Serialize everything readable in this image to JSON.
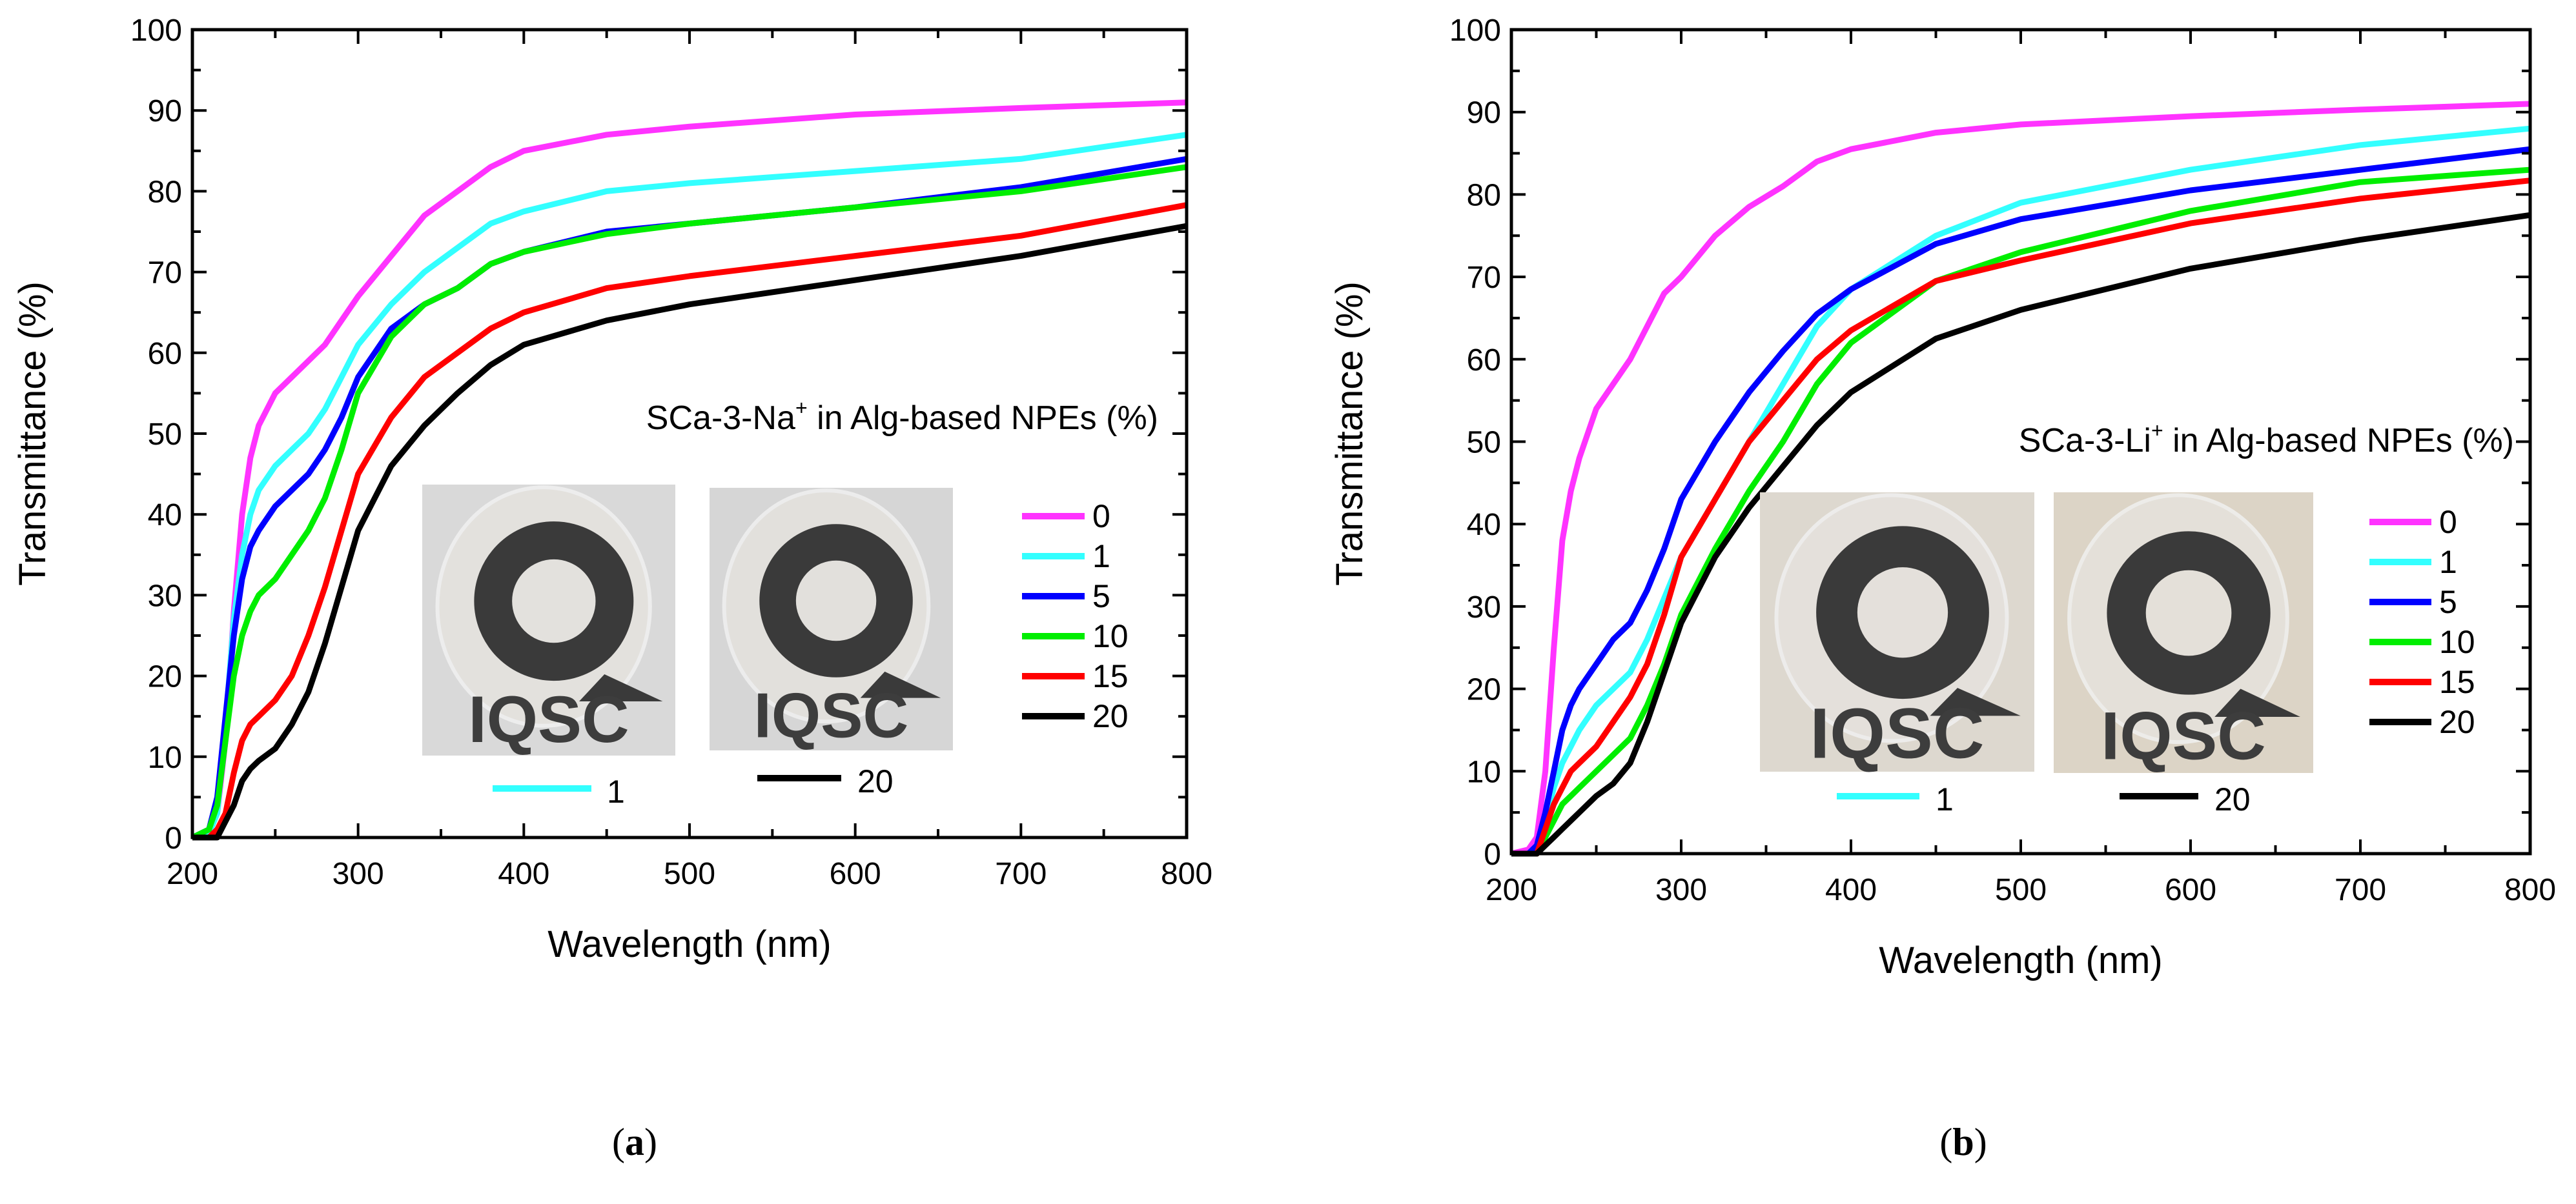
{
  "chart_data": [
    {
      "type": "line",
      "panel_label": "(a)",
      "panel_letter": "a",
      "title": "SCa-3-Na+ in Alg-based NPEs (%)",
      "title_main": "SCa-3-Na",
      "title_sup": "+",
      "title_rest": " in Alg-based NPEs (%)",
      "xlabel": "Wavelength (nm)",
      "ylabel": "Transmittance (%)",
      "xlim": [
        200,
        800
      ],
      "ylim": [
        0,
        100
      ],
      "xticks": [
        200,
        300,
        400,
        500,
        600,
        700,
        800
      ],
      "yticks": [
        0,
        10,
        20,
        30,
        40,
        50,
        60,
        70,
        80,
        90,
        100
      ],
      "grid": false,
      "legend_position": "right",
      "x": [
        200,
        210,
        215,
        220,
        225,
        230,
        235,
        240,
        250,
        260,
        270,
        280,
        290,
        300,
        320,
        340,
        360,
        380,
        400,
        450,
        500,
        600,
        700,
        800
      ],
      "series": [
        {
          "name": "0",
          "color": "#ff33ff",
          "values": [
            0,
            0.5,
            3,
            12,
            28,
            40,
            47,
            51,
            55,
            57,
            59,
            61,
            64,
            67,
            72,
            77,
            80,
            83,
            85,
            87,
            88,
            89.5,
            90.3,
            91
          ]
        },
        {
          "name": "1",
          "color": "#33ffff",
          "values": [
            0,
            0.5,
            3,
            14,
            27,
            35,
            40,
            43,
            46,
            48,
            50,
            53,
            57,
            61,
            66,
            70,
            73,
            76,
            77.5,
            80,
            81,
            82.5,
            84,
            87
          ]
        },
        {
          "name": "5",
          "color": "#0000ff",
          "values": [
            0,
            1,
            5,
            15,
            25,
            32,
            36,
            38,
            41,
            43,
            45,
            48,
            52,
            57,
            63,
            66,
            68,
            71,
            72.5,
            75,
            76,
            78,
            80.5,
            84
          ]
        },
        {
          "name": "10",
          "color": "#00ee00",
          "values": [
            0,
            1,
            4,
            12,
            20,
            25,
            28,
            30,
            32,
            35,
            38,
            42,
            48,
            55,
            62,
            66,
            68,
            71,
            72.5,
            74.7,
            76,
            78,
            80,
            83
          ]
        },
        {
          "name": "15",
          "color": "#ff0000",
          "values": [
            0,
            0,
            1,
            3,
            8,
            12,
            14,
            15,
            17,
            20,
            25,
            31,
            38,
            45,
            52,
            57,
            60,
            63,
            65,
            68,
            69.5,
            72,
            74.5,
            78.3
          ]
        },
        {
          "name": "20",
          "color": "#000000",
          "values": [
            0,
            0,
            0,
            2,
            4,
            7,
            8.5,
            9.5,
            11,
            14,
            18,
            24,
            31,
            38,
            46,
            51,
            55,
            58.5,
            61,
            64,
            66,
            69,
            72,
            75.7
          ]
        }
      ],
      "photos": [
        {
          "legend_label": "1",
          "legend_color": "#33ffff",
          "logo_text": "IQSC",
          "tint": "#d9d9d9"
        },
        {
          "legend_label": "20",
          "legend_color": "#000000",
          "logo_text": "IQSC",
          "tint": "#d6d6d6"
        }
      ]
    },
    {
      "type": "line",
      "panel_label": "(b)",
      "panel_letter": "b",
      "title": "SCa-3-Li+ in Alg-based NPEs (%)",
      "title_main": "SCa-3-Li",
      "title_sup": "+",
      "title_rest": " in Alg-based NPEs (%)",
      "xlabel": "Wavelength (nm)",
      "ylabel": "Transmittance (%)",
      "xlim": [
        200,
        800
      ],
      "ylim": [
        0,
        100
      ],
      "xticks": [
        200,
        300,
        400,
        500,
        600,
        700,
        800
      ],
      "yticks": [
        0,
        10,
        20,
        30,
        40,
        50,
        60,
        70,
        80,
        90,
        100
      ],
      "grid": false,
      "legend_position": "right",
      "x": [
        200,
        210,
        215,
        220,
        225,
        230,
        235,
        240,
        250,
        260,
        270,
        280,
        290,
        300,
        320,
        340,
        360,
        380,
        400,
        450,
        500,
        600,
        700,
        800
      ],
      "series": [
        {
          "name": "0",
          "color": "#ff33ff",
          "values": [
            0,
            0.5,
            2,
            10,
            25,
            38,
            44,
            48,
            54,
            57,
            60,
            64,
            68,
            70,
            75,
            78.5,
            81,
            84,
            85.5,
            87.5,
            88.5,
            89.5,
            90.3,
            91
          ]
        },
        {
          "name": "1",
          "color": "#33ffff",
          "values": [
            0,
            0,
            1,
            4,
            8,
            11,
            13,
            15,
            18,
            20,
            22,
            26,
            31,
            36,
            43,
            50,
            57,
            64,
            68.5,
            75,
            79,
            83,
            86,
            88
          ]
        },
        {
          "name": "5",
          "color": "#0000ff",
          "values": [
            0,
            0,
            1,
            5,
            10,
            15,
            18,
            20,
            23,
            26,
            28,
            32,
            37,
            43,
            50,
            56,
            61,
            65.5,
            68.5,
            74,
            77,
            80.5,
            83,
            85.5
          ]
        },
        {
          "name": "10",
          "color": "#00ee00",
          "values": [
            0,
            0,
            0,
            2,
            4,
            6,
            7,
            8,
            10,
            12,
            14,
            18,
            23,
            29,
            37,
            44,
            50,
            57,
            62,
            69.5,
            73,
            78,
            81.5,
            83
          ]
        },
        {
          "name": "15",
          "color": "#ff0000",
          "values": [
            0,
            0,
            0,
            3,
            6,
            8,
            10,
            11,
            13,
            16,
            19,
            23,
            29,
            36,
            43,
            50,
            55,
            60,
            63.5,
            69.5,
            72,
            76.5,
            79.5,
            81.7
          ]
        },
        {
          "name": "20",
          "color": "#000000",
          "values": [
            0,
            0,
            0,
            1,
            2,
            3,
            4,
            5,
            7,
            8.5,
            11,
            16,
            22,
            28,
            36,
            42,
            47,
            52,
            56,
            62.5,
            66,
            71,
            74.5,
            77.5
          ]
        }
      ],
      "photos": [
        {
          "legend_label": "1",
          "legend_color": "#33ffff",
          "logo_text": "IQSC",
          "tint": "#ddd8cf"
        },
        {
          "legend_label": "20",
          "legend_color": "#000000",
          "logo_text": "IQSC",
          "tint": "#dcd4c6"
        }
      ]
    }
  ]
}
